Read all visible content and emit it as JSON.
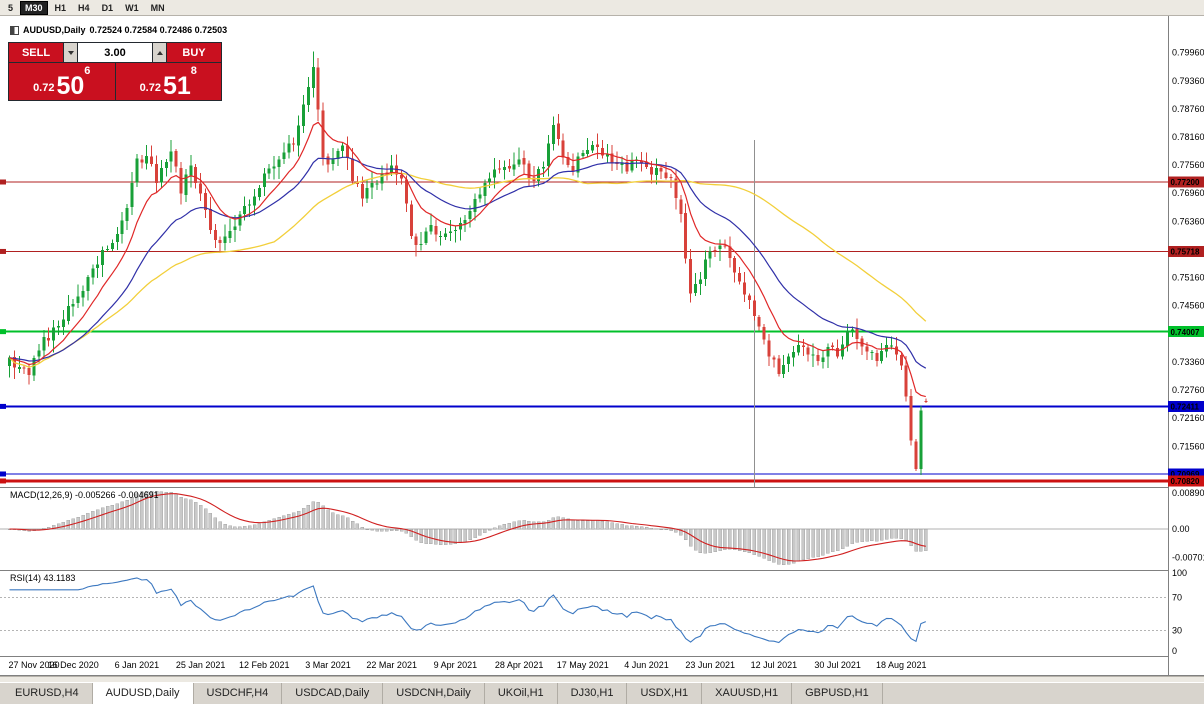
{
  "toolbar": {
    "buttons": [
      {
        "label": "5",
        "active": false
      },
      {
        "label": "M30",
        "active": true
      },
      {
        "label": "H1",
        "active": false
      },
      {
        "label": "H4",
        "active": false
      },
      {
        "label": "D1",
        "active": false
      },
      {
        "label": "W1",
        "active": false
      },
      {
        "label": "MN",
        "active": false
      }
    ]
  },
  "chart_header": {
    "symbol": "AUDUSD,Daily",
    "ohlc": "0.72524 0.72584 0.72486 0.72503"
  },
  "trade_panel": {
    "sell_label": "SELL",
    "buy_label": "BUY",
    "volume": "3.00",
    "sell_price": {
      "base": "0.72",
      "big": "50",
      "sup": "6"
    },
    "buy_price": {
      "base": "0.72",
      "big": "51",
      "sup": "8"
    },
    "accent": "#c9101f"
  },
  "indicator_labels": {
    "macd": "MACD(12,26,9) -0.005266 -0.004691",
    "rsi": "RSI(14) 43.1183"
  },
  "tabs": {
    "items": [
      {
        "label": "EURUSD,H4",
        "active": false
      },
      {
        "label": "AUDUSD,Daily",
        "active": true
      },
      {
        "label": "USDCHF,H4",
        "active": false
      },
      {
        "label": "USDCAD,Daily",
        "active": false
      },
      {
        "label": "USDCNH,Daily",
        "active": false
      },
      {
        "label": "UKOil,H1",
        "active": false
      },
      {
        "label": "DJ30,H1",
        "active": false
      },
      {
        "label": "USDX,H1",
        "active": false
      },
      {
        "label": "XAUUSD,H1",
        "active": false
      },
      {
        "label": "GBPUSD,H1",
        "active": false
      }
    ]
  },
  "chart_data": {
    "type": "candlestick",
    "symbol": "AUDUSD",
    "timeframe": "Daily",
    "bars": 188,
    "last_ohlc": {
      "o": 0.72524,
      "h": 0.72584,
      "l": 0.72486,
      "c": 0.72503
    },
    "close_anchors": [
      [
        0,
        0.7345
      ],
      [
        2,
        0.7325
      ],
      [
        4,
        0.7308
      ],
      [
        6,
        0.736
      ],
      [
        9,
        0.741
      ],
      [
        13,
        0.746
      ],
      [
        17,
        0.7535
      ],
      [
        21,
        0.759
      ],
      [
        24,
        0.7665
      ],
      [
        26,
        0.777
      ],
      [
        28,
        0.7775
      ],
      [
        30,
        0.7718
      ],
      [
        33,
        0.7785
      ],
      [
        35,
        0.7695
      ],
      [
        37,
        0.7755
      ],
      [
        39,
        0.7695
      ],
      [
        41,
        0.7618
      ],
      [
        43,
        0.759
      ],
      [
        46,
        0.7625
      ],
      [
        49,
        0.7672
      ],
      [
        52,
        0.7738
      ],
      [
        55,
        0.7768
      ],
      [
        58,
        0.78
      ],
      [
        60,
        0.7885
      ],
      [
        62,
        0.7965
      ],
      [
        63,
        0.7875
      ],
      [
        64,
        0.7772
      ],
      [
        66,
        0.7768
      ],
      [
        68,
        0.7798
      ],
      [
        70,
        0.7722
      ],
      [
        72,
        0.7685
      ],
      [
        74,
        0.7718
      ],
      [
        76,
        0.7738
      ],
      [
        78,
        0.7755
      ],
      [
        80,
        0.7728
      ],
      [
        82,
        0.7605
      ],
      [
        84,
        0.7588
      ],
      [
        86,
        0.7628
      ],
      [
        88,
        0.7605
      ],
      [
        91,
        0.7618
      ],
      [
        94,
        0.7658
      ],
      [
        97,
        0.7718
      ],
      [
        100,
        0.7748
      ],
      [
        104,
        0.7768
      ],
      [
        107,
        0.7722
      ],
      [
        109,
        0.7752
      ],
      [
        111,
        0.7842
      ],
      [
        113,
        0.7772
      ],
      [
        115,
        0.7742
      ],
      [
        117,
        0.7782
      ],
      [
        120,
        0.7795
      ],
      [
        123,
        0.7762
      ],
      [
        126,
        0.7742
      ],
      [
        128,
        0.7768
      ],
      [
        130,
        0.7752
      ],
      [
        133,
        0.7742
      ],
      [
        135,
        0.773
      ],
      [
        137,
        0.7652
      ],
      [
        139,
        0.7482
      ],
      [
        141,
        0.7512
      ],
      [
        143,
        0.7572
      ],
      [
        145,
        0.7585
      ],
      [
        147,
        0.7558
      ],
      [
        149,
        0.7508
      ],
      [
        151,
        0.7468
      ],
      [
        153,
        0.7412
      ],
      [
        155,
        0.7348
      ],
      [
        157,
        0.731
      ],
      [
        159,
        0.7348
      ],
      [
        161,
        0.7372
      ],
      [
        163,
        0.7352
      ],
      [
        165,
        0.7338
      ],
      [
        167,
        0.7368
      ],
      [
        169,
        0.7348
      ],
      [
        171,
        0.7402
      ],
      [
        173,
        0.7385
      ],
      [
        175,
        0.7358
      ],
      [
        177,
        0.7338
      ],
      [
        179,
        0.7372
      ],
      [
        181,
        0.7352
      ],
      [
        182,
        0.7328
      ],
      [
        183,
        0.7262
      ],
      [
        184,
        0.7168
      ],
      [
        185,
        0.7108
      ],
      [
        186,
        0.7232
      ],
      [
        187,
        0.72503
      ]
    ],
    "spike_high": {
      "bar": 62,
      "price": 0.7999
    },
    "spike_low": {
      "bar": 185,
      "price": 0.7103
    },
    "x_labels": [
      [
        0,
        "27 Nov 2020"
      ],
      [
        13,
        "16 Dec 2020"
      ],
      [
        26,
        "6 Jan 2021"
      ],
      [
        39,
        "25 Jan 2021"
      ],
      [
        52,
        "12 Feb 2021"
      ],
      [
        65,
        "3 Mar 2021"
      ],
      [
        78,
        "22 Mar 2021"
      ],
      [
        91,
        "9 Apr 2021"
      ],
      [
        104,
        "28 Apr 2021"
      ],
      [
        117,
        "17 May 2021"
      ],
      [
        130,
        "4 Jun 2021"
      ],
      [
        143,
        "23 Jun 2021"
      ],
      [
        156,
        "12 Jul 2021"
      ],
      [
        169,
        "30 Jul 2021"
      ],
      [
        182,
        "18 Aug 2021"
      ]
    ],
    "y_axis": {
      "start": 0.7996,
      "step": 0.006,
      "count": 16,
      "decimals": 5
    },
    "levels": [
      {
        "price": 0.772,
        "label": "0.77200",
        "color": "#b02020",
        "width": 1
      },
      {
        "price": 0.75718,
        "label": "0.75718",
        "color": "#b02020",
        "width": 1
      },
      {
        "price": 0.74007,
        "label": "0.74007",
        "color": "#00c02a",
        "width": 2
      },
      {
        "price": 0.72411,
        "label": "0.72411",
        "color": "#0000cc",
        "width": 2
      },
      {
        "price": 0.70969,
        "label": "0.70969",
        "color": "#0000cc",
        "width": 1
      },
      {
        "price": 0.7082,
        "label": "0.70820",
        "color": "#cc1111",
        "width": 3
      }
    ],
    "moving_averages": [
      {
        "period": 10,
        "type": "ema",
        "color": "#e02828"
      },
      {
        "period": 25,
        "type": "ema",
        "color": "#3030a8"
      },
      {
        "period": 55,
        "type": "sma",
        "color": "#f2cf3a"
      }
    ],
    "macd": {
      "fast": 12,
      "slow": 26,
      "signal": 9,
      "value": -0.005266,
      "signal_value": -0.004691,
      "axis": [
        {
          "v": 0.0089,
          "label": "0.00890"
        },
        {
          "v": 0,
          "label": "0.00"
        },
        {
          "v": -0.00701,
          "label": "-0.00701"
        }
      ]
    },
    "rsi": {
      "period": 14,
      "value": 43.1183,
      "levels": [
        70,
        30
      ],
      "axis": [
        {
          "v": 100,
          "label": "100"
        },
        {
          "v": 70,
          "label": "70"
        },
        {
          "v": 30,
          "label": "30"
        },
        {
          "v": 0,
          "label": "0"
        }
      ]
    },
    "vline_bar": 152,
    "colors": {
      "bull": "#18a038",
      "bear": "#d8413a",
      "macd_hist": "#c9c9c9",
      "macd_hist_edge": "#9a9a9a",
      "macd_signal": "#d02020",
      "rsi_line": "#3c78c0",
      "separator": "#808080",
      "dashed": "#b4b4b4",
      "zero_line": "#b0b0b0",
      "vline": "#909090"
    }
  }
}
